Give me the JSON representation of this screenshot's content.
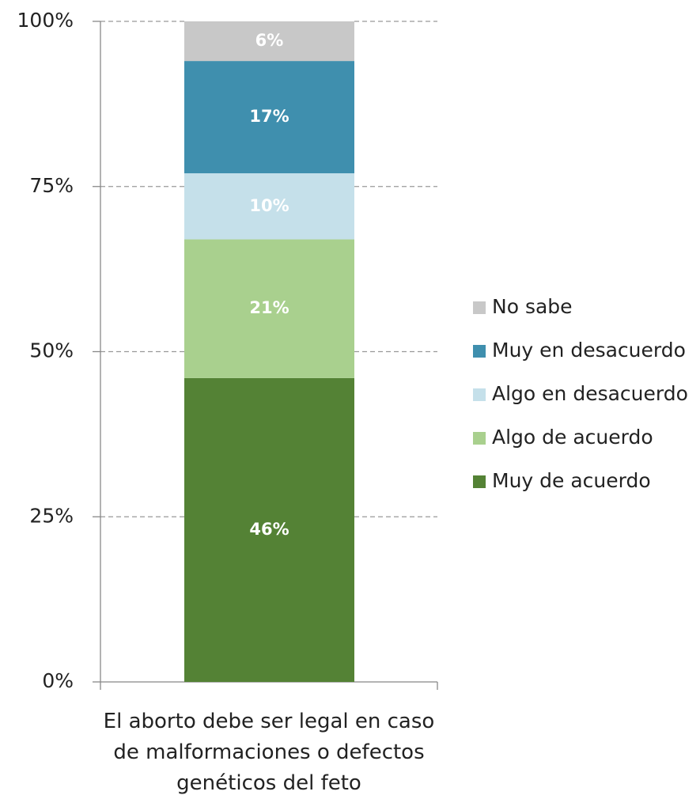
{
  "chart_data": {
    "type": "stacked_bar",
    "categories": [
      "El aborto debe ser legal en caso de malformaciones o defectos genéticos del feto"
    ],
    "series": [
      {
        "name": "Muy de acuerdo",
        "color": "#548235",
        "values": [
          46
        ],
        "value_labels": [
          "46%"
        ]
      },
      {
        "name": "Algo de acuerdo",
        "color": "#a9d08e",
        "values": [
          21
        ],
        "value_labels": [
          "21%"
        ]
      },
      {
        "name": "Algo en desacuerdo",
        "color": "#c5e0ea",
        "values": [
          10
        ],
        "value_labels": [
          "10%"
        ]
      },
      {
        "name": "Muy en desacuerdo",
        "color": "#3f8fae",
        "values": [
          17
        ],
        "value_labels": [
          "17%"
        ]
      },
      {
        "name": "No sabe",
        "color": "#c8c8c8",
        "values": [
          6
        ],
        "value_labels": [
          "6%"
        ]
      }
    ],
    "ylim": [
      0,
      100
    ],
    "yticks": [
      {
        "value": 0,
        "label": "0%"
      },
      {
        "value": 25,
        "label": "25%"
      },
      {
        "value": 50,
        "label": "50%"
      },
      {
        "value": 75,
        "label": "75%"
      },
      {
        "value": 100,
        "label": "100%"
      }
    ],
    "grid": true,
    "legend": "right"
  }
}
